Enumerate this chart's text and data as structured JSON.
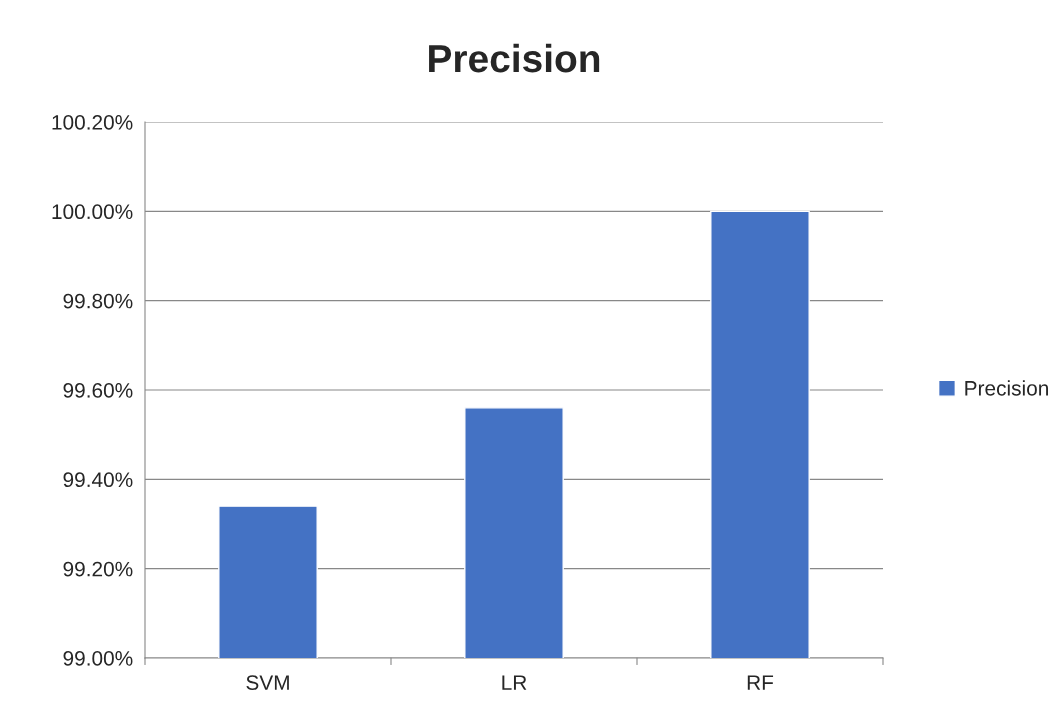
{
  "chart_data": {
    "type": "bar",
    "title": "Precision",
    "categories": [
      "SVM",
      "LR",
      "RF"
    ],
    "series": [
      {
        "name": "Precision",
        "color": "#4472c4",
        "values": [
          99.34,
          99.56,
          100.0
        ]
      }
    ],
    "ylim": [
      99.0,
      100.2
    ],
    "yticks": [
      {
        "value": 99.0,
        "label": "99.00%"
      },
      {
        "value": 99.2,
        "label": "99.20%"
      },
      {
        "value": 99.4,
        "label": "99.40%"
      },
      {
        "value": 99.6,
        "label": "99.60%"
      },
      {
        "value": 99.8,
        "label": "99.80%"
      },
      {
        "value": 100.0,
        "label": "100.00%"
      },
      {
        "value": 100.2,
        "label": "100.20%"
      }
    ],
    "grid": "y",
    "legend": "right"
  }
}
